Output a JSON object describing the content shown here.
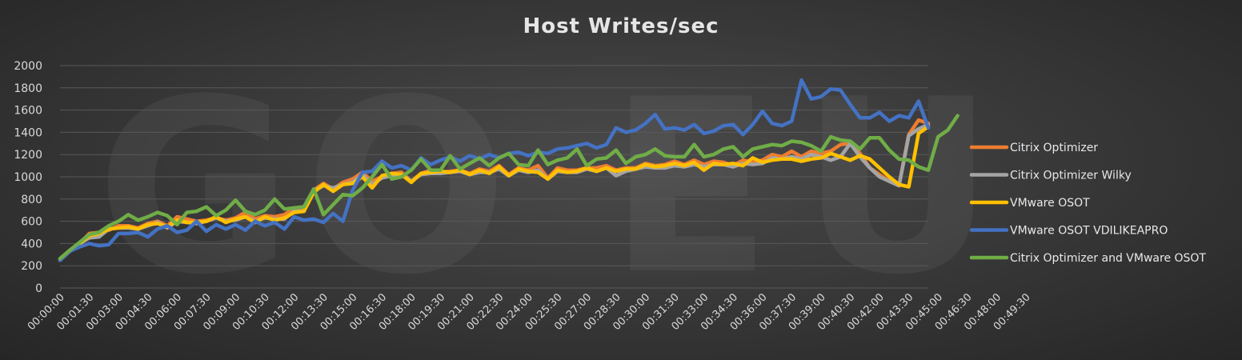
{
  "chart_data": {
    "type": "line",
    "title": "Host Writes/sec",
    "xlabel": "",
    "ylabel": "",
    "ylim": [
      0,
      2000
    ],
    "yticks": [
      0,
      200,
      400,
      600,
      800,
      1000,
      1200,
      1400,
      1600,
      1800,
      2000
    ],
    "grid": true,
    "legend_position": "right",
    "interval_seconds": 30,
    "tick_every": 3,
    "x_tick_labels": [
      "00:00:00",
      "00:01:30",
      "00:03:00",
      "00:04:30",
      "00:06:00",
      "00:07:30",
      "00:09:00",
      "00:10:30",
      "00:12:00",
      "00:13:30",
      "00:15:00",
      "00:16:30",
      "00:18:00",
      "00:19:30",
      "00:21:00",
      "00:22:30",
      "00:24:00",
      "00:25:30",
      "00:27:00",
      "00:28:30",
      "00:30:00",
      "00:31:30",
      "00:33:00",
      "00:34:30",
      "00:36:00",
      "00:37:30",
      "00:39:00",
      "00:40:30",
      "00:42:00",
      "00:43:30",
      "00:45:00",
      "00:46:30",
      "00:48:00",
      "00:49:30"
    ],
    "series": [
      {
        "name": "Citrix Optimizer",
        "color": "#ed7d31",
        "values": [
          260,
          330,
          400,
          490,
          500,
          520,
          560,
          560,
          540,
          580,
          600,
          560,
          640,
          620,
          600,
          610,
          630,
          610,
          630,
          680,
          620,
          650,
          640,
          660,
          720,
          720,
          880,
          940,
          890,
          950,
          980,
          1040,
          960,
          1000,
          1030,
          1040,
          960,
          1030,
          1060,
          1040,
          1050,
          1060,
          1030,
          1070,
          1050,
          1100,
          1020,
          1080,
          1060,
          1100,
          990,
          1080,
          1060,
          1060,
          1080,
          1080,
          1100,
          1060,
          1080,
          1080,
          1120,
          1100,
          1110,
          1140,
          1110,
          1150,
          1110,
          1140,
          1130,
          1100,
          1150,
          1130,
          1150,
          1200,
          1180,
          1230,
          1180,
          1230,
          1210,
          1230,
          1290,
          1300,
          1210,
          1080,
          1020,
          960,
          920,
          1380,
          1510,
          1480
        ]
      },
      {
        "name": "Citrix Optimizer Wilky",
        "color": "#a5a5a5",
        "values": [
          255,
          330,
          400,
          450,
          460,
          530,
          540,
          540,
          530,
          560,
          590,
          540,
          600,
          590,
          580,
          600,
          630,
          600,
          610,
          640,
          600,
          630,
          620,
          620,
          690,
          690,
          870,
          920,
          900,
          930,
          950,
          1020,
          930,
          990,
          1010,
          1020,
          960,
          1020,
          1030,
          1030,
          1040,
          1050,
          1020,
          1040,
          1040,
          1070,
          1010,
          1060,
          1040,
          1060,
          980,
          1050,
          1040,
          1040,
          1070,
          1050,
          1080,
          1010,
          1050,
          1070,
          1090,
          1080,
          1080,
          1100,
          1090,
          1110,
          1090,
          1110,
          1110,
          1090,
          1120,
          1110,
          1120,
          1170,
          1160,
          1180,
          1160,
          1200,
          1180,
          1150,
          1180,
          1300,
          1180,
          1080,
          1000,
          960,
          920,
          1370,
          1430,
          1470
        ]
      },
      {
        "name": "VMware OSOT",
        "color": "#ffc000",
        "values": [
          250,
          330,
          400,
          470,
          490,
          530,
          540,
          550,
          530,
          570,
          580,
          550,
          610,
          590,
          590,
          600,
          640,
          590,
          620,
          640,
          590,
          640,
          610,
          630,
          680,
          690,
          860,
          930,
          870,
          930,
          940,
          1000,
          900,
          1010,
          1030,
          1020,
          950,
          1030,
          1040,
          1050,
          1040,
          1060,
          1020,
          1060,
          1030,
          1090,
          1010,
          1070,
          1050,
          1040,
          980,
          1060,
          1040,
          1050,
          1080,
          1050,
          1080,
          1050,
          1070,
          1070,
          1110,
          1090,
          1100,
          1120,
          1100,
          1130,
          1060,
          1120,
          1110,
          1120,
          1100,
          1170,
          1130,
          1150,
          1160,
          1160,
          1140,
          1160,
          1170,
          1210,
          1180,
          1150,
          1190,
          1160,
          1080,
          1000,
          930,
          910,
          1390,
          1450
        ]
      },
      {
        "name": "VMware OSOT VDILIKEAPRO",
        "color": "#4472c4",
        "values": [
          250,
          330,
          370,
          400,
          380,
          390,
          490,
          490,
          500,
          460,
          530,
          560,
          500,
          520,
          600,
          510,
          570,
          530,
          570,
          520,
          600,
          560,
          590,
          530,
          640,
          610,
          620,
          590,
          670,
          600,
          880,
          1040,
          1050,
          1140,
          1080,
          1100,
          1060,
          1170,
          1110,
          1150,
          1180,
          1140,
          1190,
          1160,
          1200,
          1170,
          1210,
          1220,
          1190,
          1220,
          1210,
          1250,
          1260,
          1280,
          1300,
          1260,
          1290,
          1440,
          1400,
          1420,
          1480,
          1560,
          1430,
          1440,
          1420,
          1470,
          1390,
          1410,
          1460,
          1470,
          1380,
          1470,
          1590,
          1480,
          1460,
          1500,
          1870,
          1700,
          1720,
          1790,
          1780,
          1650,
          1530,
          1530,
          1580,
          1500,
          1550,
          1530,
          1680,
          1440
        ]
      },
      {
        "name": "Citrix Optimizer and VMware OSOT",
        "color": "#70ad47",
        "values": [
          265,
          340,
          410,
          480,
          500,
          560,
          600,
          660,
          610,
          640,
          680,
          650,
          570,
          680,
          690,
          730,
          650,
          700,
          790,
          690,
          660,
          700,
          800,
          710,
          720,
          730,
          890,
          660,
          750,
          840,
          830,
          900,
          1000,
          1110,
          980,
          1000,
          1060,
          1160,
          1060,
          1060,
          1190,
          1070,
          1120,
          1170,
          1100,
          1170,
          1210,
          1110,
          1100,
          1240,
          1110,
          1150,
          1170,
          1250,
          1100,
          1160,
          1170,
          1240,
          1120,
          1180,
          1200,
          1250,
          1190,
          1180,
          1180,
          1290,
          1180,
          1200,
          1250,
          1270,
          1180,
          1250,
          1270,
          1290,
          1280,
          1320,
          1310,
          1280,
          1230,
          1360,
          1330,
          1320,
          1250,
          1350,
          1350,
          1240,
          1160,
          1150,
          1090,
          1060,
          1360,
          1420,
          1550
        ]
      }
    ]
  }
}
